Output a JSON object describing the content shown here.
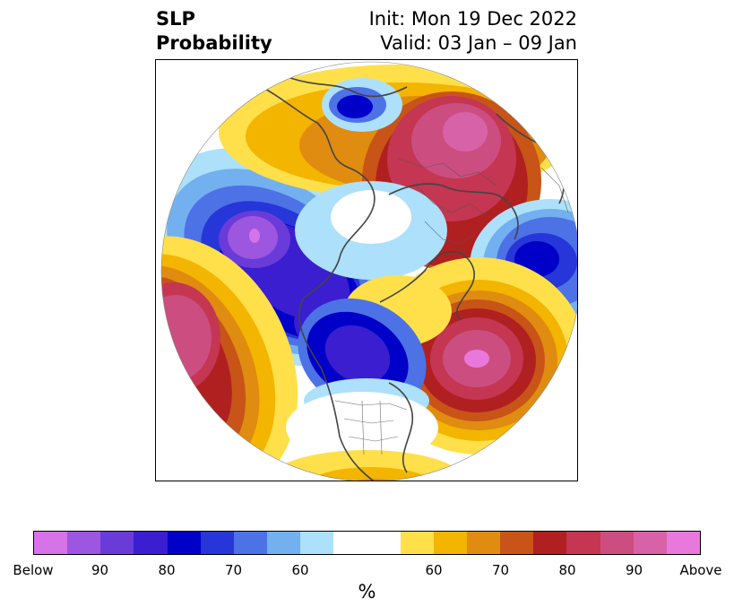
{
  "title": {
    "left_line1": "SLP",
    "left_line2": "Probability",
    "right_line1": "Init: Mon 19 Dec 2022",
    "right_line2": "Valid: 03 Jan – 09 Jan"
  },
  "colorbar": {
    "unit": "%",
    "below_colors": [
      "#d673e8",
      "#9c56e0",
      "#6a3bd8",
      "#3a1ed0",
      "#0000c8",
      "#2636d8",
      "#4c72e6",
      "#73b0f0",
      "#ade0fa"
    ],
    "neutral_color": "#ffffff",
    "above_colors": [
      "#ffe04a",
      "#f3b500",
      "#e08c10",
      "#c85418",
      "#b02020",
      "#c43652",
      "#cc4e80",
      "#d862a8",
      "#e878dc"
    ],
    "tick_labels": [
      "Below",
      "90",
      "80",
      "70",
      "60",
      "60",
      "70",
      "80",
      "90",
      "Above"
    ]
  },
  "legend_marks": {
    "below_label": "Below",
    "above_label": "Above"
  }
}
